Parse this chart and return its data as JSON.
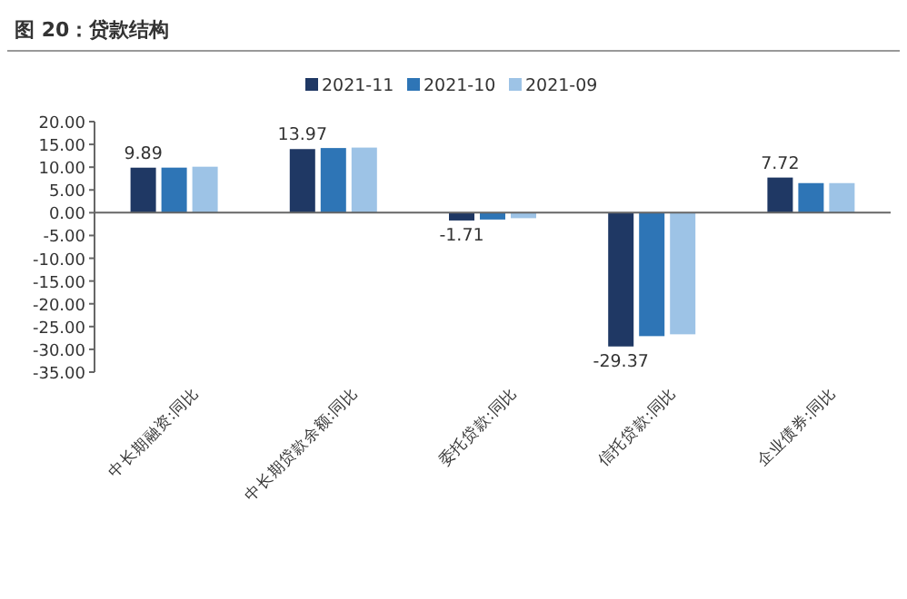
{
  "chart_data": {
    "type": "bar",
    "title": "图 20：贷款结构",
    "categories": [
      "中长期融资:同比",
      "中长期贷款余额:同比",
      "委托贷款:同比",
      "信托贷款:同比",
      "企业债券:同比"
    ],
    "series": [
      {
        "name": "2021-11",
        "color": "#1f3864",
        "values": [
          9.89,
          13.97,
          -1.71,
          -29.37,
          7.72
        ],
        "value_labels": [
          "9.89",
          "13.97",
          "-1.71",
          "-29.37",
          "7.72"
        ]
      },
      {
        "name": "2021-10",
        "color": "#2e75b6",
        "values": [
          9.9,
          14.2,
          -1.5,
          -27.1,
          6.5
        ]
      },
      {
        "name": "2021-09",
        "color": "#9dc3e6",
        "values": [
          10.1,
          14.3,
          -1.2,
          -26.7,
          6.5
        ]
      }
    ],
    "ylim": [
      -35,
      20
    ],
    "yticks": [
      {
        "value": 20,
        "label": "20.00"
      },
      {
        "value": 15,
        "label": "15.00"
      },
      {
        "value": 10,
        "label": "10.00"
      },
      {
        "value": 5,
        "label": "5.00"
      },
      {
        "value": 0,
        "label": "0.00"
      },
      {
        "value": -5,
        "label": "-5.00"
      },
      {
        "value": -10,
        "label": "-10.00"
      },
      {
        "value": -15,
        "label": "-15.00"
      },
      {
        "value": -20,
        "label": "-20.00"
      },
      {
        "value": -25,
        "label": "-25.00"
      },
      {
        "value": -30,
        "label": "-30.00"
      },
      {
        "value": -35,
        "label": "-35.00"
      }
    ],
    "legend": "top"
  }
}
